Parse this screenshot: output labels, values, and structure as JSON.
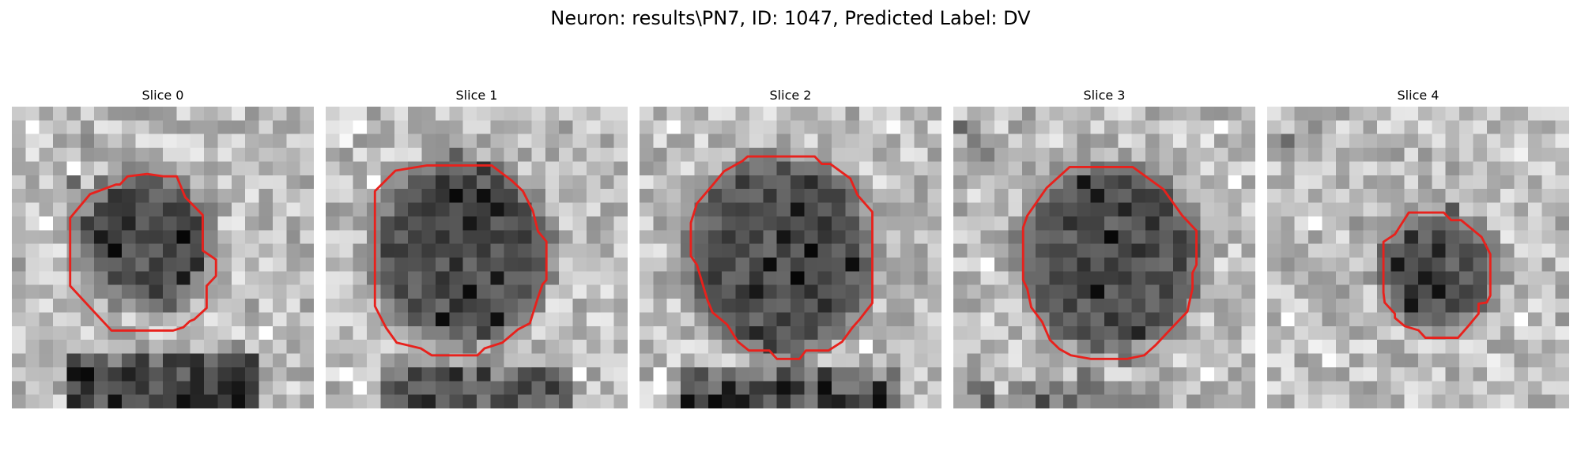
{
  "figure": {
    "title": "Neuron: results\\PN7, ID: 1047, Predicted Label: DV"
  },
  "colors": {
    "background": "#ffffff",
    "contour": "#e8211c"
  },
  "panels": [
    {
      "title": "Slice 0",
      "dark_cells": [
        [
          2,
          5
        ],
        [
          2,
          6
        ],
        [
          3,
          8
        ],
        [
          4,
          9
        ],
        [
          5,
          4
        ],
        [
          5,
          6
        ],
        [
          6,
          7
        ],
        [
          7,
          7
        ],
        [
          8,
          5
        ],
        [
          8,
          8
        ],
        [
          9,
          6
        ],
        [
          10,
          7
        ],
        [
          8,
          13
        ],
        [
          9,
          12
        ],
        [
          10,
          11
        ],
        [
          11,
          13
        ],
        [
          12,
          12
        ],
        [
          13,
          10
        ],
        [
          14,
          11
        ],
        [
          15,
          13
        ],
        [
          16,
          12
        ],
        [
          17,
          12
        ],
        [
          18,
          11
        ],
        [
          19,
          13
        ]
      ],
      "light_cells": [
        [
          1,
          1
        ],
        [
          1,
          2
        ],
        [
          2,
          11
        ],
        [
          3,
          18
        ],
        [
          4,
          4
        ],
        [
          8,
          2
        ],
        [
          10,
          2
        ],
        [
          11,
          1
        ],
        [
          16,
          18
        ],
        [
          17,
          17
        ],
        [
          19,
          9
        ],
        [
          20,
          8
        ],
        [
          20,
          4
        ]
      ],
      "contour": [
        [
          54.6,
          23.1
        ],
        [
          57.4,
          30.0
        ],
        [
          63.2,
          35.9
        ],
        [
          63.2,
          47.7
        ],
        [
          65.3,
          49.1
        ],
        [
          67.6,
          50.7
        ],
        [
          67.6,
          56.1
        ],
        [
          64.5,
          59.4
        ],
        [
          64.5,
          66.7
        ],
        [
          60.4,
          70.5
        ],
        [
          58.9,
          71.1
        ],
        [
          56.8,
          73.1
        ],
        [
          53.4,
          74.2
        ],
        [
          33.0,
          74.2
        ],
        [
          27.8,
          68.6
        ],
        [
          19.3,
          59.4
        ],
        [
          19.3,
          36.9
        ],
        [
          25.9,
          29.0
        ],
        [
          34.5,
          25.8
        ],
        [
          35.8,
          25.8
        ],
        [
          38.3,
          23.1
        ],
        [
          44.8,
          22.3
        ],
        [
          50.3,
          23.1
        ]
      ]
    },
    {
      "title": "Slice 1",
      "dark_cells": [
        [
          2,
          10
        ],
        [
          3,
          9
        ],
        [
          4,
          11
        ],
        [
          5,
          8
        ],
        [
          6,
          9
        ],
        [
          7,
          12
        ],
        [
          8,
          10
        ],
        [
          9,
          8
        ],
        [
          10,
          11
        ],
        [
          11,
          9
        ],
        [
          12,
          12
        ],
        [
          13,
          10
        ],
        [
          14,
          9
        ],
        [
          15,
          8
        ],
        [
          16,
          11
        ],
        [
          17,
          10
        ],
        [
          18,
          12
        ],
        [
          19,
          9
        ],
        [
          6,
          11
        ],
        [
          9,
          12
        ],
        [
          12,
          8
        ],
        [
          15,
          12
        ],
        [
          18,
          8
        ],
        [
          2,
          12
        ]
      ],
      "light_cells": [
        [
          1,
          1
        ],
        [
          1,
          2
        ],
        [
          2,
          1
        ],
        [
          19,
          1
        ],
        [
          20,
          2
        ],
        [
          18,
          19
        ],
        [
          19,
          18
        ],
        [
          1,
          19
        ],
        [
          20,
          19
        ],
        [
          10,
          21
        ],
        [
          5,
          3
        ],
        [
          16,
          4
        ]
      ],
      "contour": [
        [
          16.3,
          28.0
        ],
        [
          23.1,
          21.2
        ],
        [
          33.4,
          19.5
        ],
        [
          55.0,
          19.5
        ],
        [
          61.6,
          24.5
        ],
        [
          65.3,
          28.0
        ],
        [
          68.6,
          34.5
        ],
        [
          70.3,
          41.3
        ],
        [
          73.1,
          44.7
        ],
        [
          73.1,
          57.4
        ],
        [
          71.8,
          58.9
        ],
        [
          70.3,
          63.2
        ],
        [
          67.6,
          71.8
        ],
        [
          63.7,
          73.8
        ],
        [
          58.5,
          78.2
        ],
        [
          52.6,
          80.1
        ],
        [
          50.3,
          82.4
        ],
        [
          35.1,
          82.4
        ],
        [
          31.5,
          80.1
        ],
        [
          23.5,
          78.2
        ],
        [
          20.0,
          73.3
        ],
        [
          16.3,
          66.1
        ],
        [
          16.3,
          50.7
        ],
        [
          16.3,
          36.5
        ]
      ]
    },
    {
      "title": "Slice 2",
      "dark_cells": [
        [
          3,
          8
        ],
        [
          4,
          10
        ],
        [
          5,
          12
        ],
        [
          6,
          9
        ],
        [
          7,
          11
        ],
        [
          8,
          13
        ],
        [
          9,
          10
        ],
        [
          10,
          12
        ],
        [
          11,
          9
        ],
        [
          12,
          11
        ],
        [
          13,
          8
        ],
        [
          14,
          13
        ],
        [
          15,
          10
        ],
        [
          16,
          12
        ],
        [
          17,
          9
        ],
        [
          18,
          11
        ],
        [
          19,
          13
        ],
        [
          9,
          8
        ],
        [
          13,
          12
        ],
        [
          16,
          8
        ],
        [
          11,
          15
        ],
        [
          5,
          15
        ]
      ],
      "light_cells": [
        [
          1,
          1
        ],
        [
          1,
          2
        ],
        [
          2,
          1
        ],
        [
          19,
          1
        ],
        [
          20,
          1
        ],
        [
          18,
          19
        ],
        [
          19,
          19
        ],
        [
          1,
          18
        ],
        [
          20,
          18
        ],
        [
          3,
          4
        ],
        [
          17,
          16
        ]
      ],
      "contour": [
        [
          35.8,
          16.5
        ],
        [
          58.0,
          16.5
        ],
        [
          60.4,
          19.0
        ],
        [
          63.2,
          19.0
        ],
        [
          69.8,
          23.8
        ],
        [
          72.2,
          29.3
        ],
        [
          77.1,
          34.9
        ],
        [
          77.1,
          65.1
        ],
        [
          72.9,
          70.5
        ],
        [
          70.6,
          73.1
        ],
        [
          67.1,
          77.9
        ],
        [
          62.6,
          80.8
        ],
        [
          55.1,
          80.8
        ],
        [
          53.0,
          83.6
        ],
        [
          45.5,
          83.6
        ],
        [
          43.0,
          80.8
        ],
        [
          36.2,
          80.8
        ],
        [
          32.6,
          77.9
        ],
        [
          29.0,
          72.2
        ],
        [
          24.2,
          68.2
        ],
        [
          22.5,
          64.1
        ],
        [
          19.0,
          52.4
        ],
        [
          17.0,
          49.5
        ],
        [
          17.0,
          38.5
        ],
        [
          19.0,
          32.1
        ],
        [
          24.2,
          26.0
        ],
        [
          28.0,
          21.4
        ],
        [
          34.1,
          18.0
        ]
      ]
    },
    {
      "title": "Slice 3",
      "dark_cells": [
        [
          1,
          0
        ],
        [
          2,
          1
        ],
        [
          3,
          2
        ],
        [
          4,
          5
        ],
        [
          5,
          9
        ],
        [
          6,
          10
        ],
        [
          7,
          12
        ],
        [
          8,
          8
        ],
        [
          9,
          11
        ],
        [
          10,
          13
        ],
        [
          11,
          9
        ],
        [
          12,
          12
        ],
        [
          13,
          10
        ],
        [
          14,
          8
        ],
        [
          15,
          11
        ],
        [
          16,
          13
        ],
        [
          17,
          10
        ],
        [
          18,
          12
        ],
        [
          19,
          9
        ],
        [
          13,
          15
        ],
        [
          8,
          14
        ],
        [
          20,
          1
        ]
      ],
      "light_cells": [
        [
          1,
          3
        ],
        [
          2,
          18
        ],
        [
          3,
          19
        ],
        [
          19,
          2
        ],
        [
          20,
          3
        ],
        [
          17,
          19
        ],
        [
          19,
          18
        ],
        [
          1,
          19
        ],
        [
          10,
          1
        ],
        [
          11,
          2
        ],
        [
          5,
          20
        ]
      ],
      "contour": [
        [
          38.5,
          20.0
        ],
        [
          59.4,
          20.0
        ],
        [
          69.6,
          27.4
        ],
        [
          75.8,
          36.1
        ],
        [
          80.5,
          41.1
        ],
        [
          80.5,
          52.4
        ],
        [
          79.2,
          55.1
        ],
        [
          79.2,
          60.2
        ],
        [
          77.5,
          67.9
        ],
        [
          73.0,
          72.6
        ],
        [
          67.1,
          78.9
        ],
        [
          63.2,
          82.4
        ],
        [
          57.4,
          83.6
        ],
        [
          45.6,
          83.6
        ],
        [
          38.9,
          82.4
        ],
        [
          35.1,
          80.3
        ],
        [
          32.0,
          77.3
        ],
        [
          29.4,
          71.3
        ],
        [
          25.8,
          66.5
        ],
        [
          24.5,
          60.4
        ],
        [
          23.1,
          57.4
        ],
        [
          23.1,
          40.1
        ],
        [
          24.5,
          36.1
        ],
        [
          30.9,
          26.9
        ]
      ]
    },
    {
      "title": "Slice 4",
      "dark_cells": [
        [
          1,
          3
        ],
        [
          2,
          1
        ],
        [
          3,
          2
        ],
        [
          8,
          6
        ],
        [
          9,
          7
        ],
        [
          10,
          8
        ],
        [
          11,
          9
        ],
        [
          12,
          8
        ],
        [
          13,
          10
        ],
        [
          11,
          11
        ],
        [
          12,
          13
        ],
        [
          10,
          12
        ],
        [
          13,
          12
        ],
        [
          14,
          10
        ],
        [
          9,
          10
        ],
        [
          12,
          11
        ],
        [
          7,
          13
        ]
      ],
      "light_cells": [
        [
          1,
          15
        ],
        [
          2,
          16
        ],
        [
          15,
          1
        ],
        [
          16,
          2
        ],
        [
          17,
          3
        ],
        [
          18,
          4
        ],
        [
          3,
          18
        ],
        [
          4,
          19
        ],
        [
          15,
          18
        ],
        [
          16,
          19
        ],
        [
          18,
          16
        ],
        [
          19,
          17
        ],
        [
          8,
          3
        ],
        [
          12,
          19
        ],
        [
          5,
          6
        ]
      ],
      "contour": [
        [
          46.9,
          35.1
        ],
        [
          58.5,
          35.1
        ],
        [
          60.9,
          37.6
        ],
        [
          64.2,
          37.6
        ],
        [
          71.0,
          43.2
        ],
        [
          73.9,
          48.9
        ],
        [
          73.9,
          62.6
        ],
        [
          72.7,
          64.9
        ],
        [
          70.0,
          65.3
        ],
        [
          70.0,
          68.6
        ],
        [
          66.6,
          72.7
        ],
        [
          63.2,
          76.6
        ],
        [
          52.4,
          76.6
        ],
        [
          50.1,
          74.1
        ],
        [
          45.5,
          72.7
        ],
        [
          42.3,
          70.0
        ],
        [
          42.3,
          68.6
        ],
        [
          38.9,
          64.9
        ],
        [
          38.5,
          61.6
        ],
        [
          38.5,
          44.8
        ],
        [
          42.3,
          42.3
        ]
      ]
    }
  ]
}
